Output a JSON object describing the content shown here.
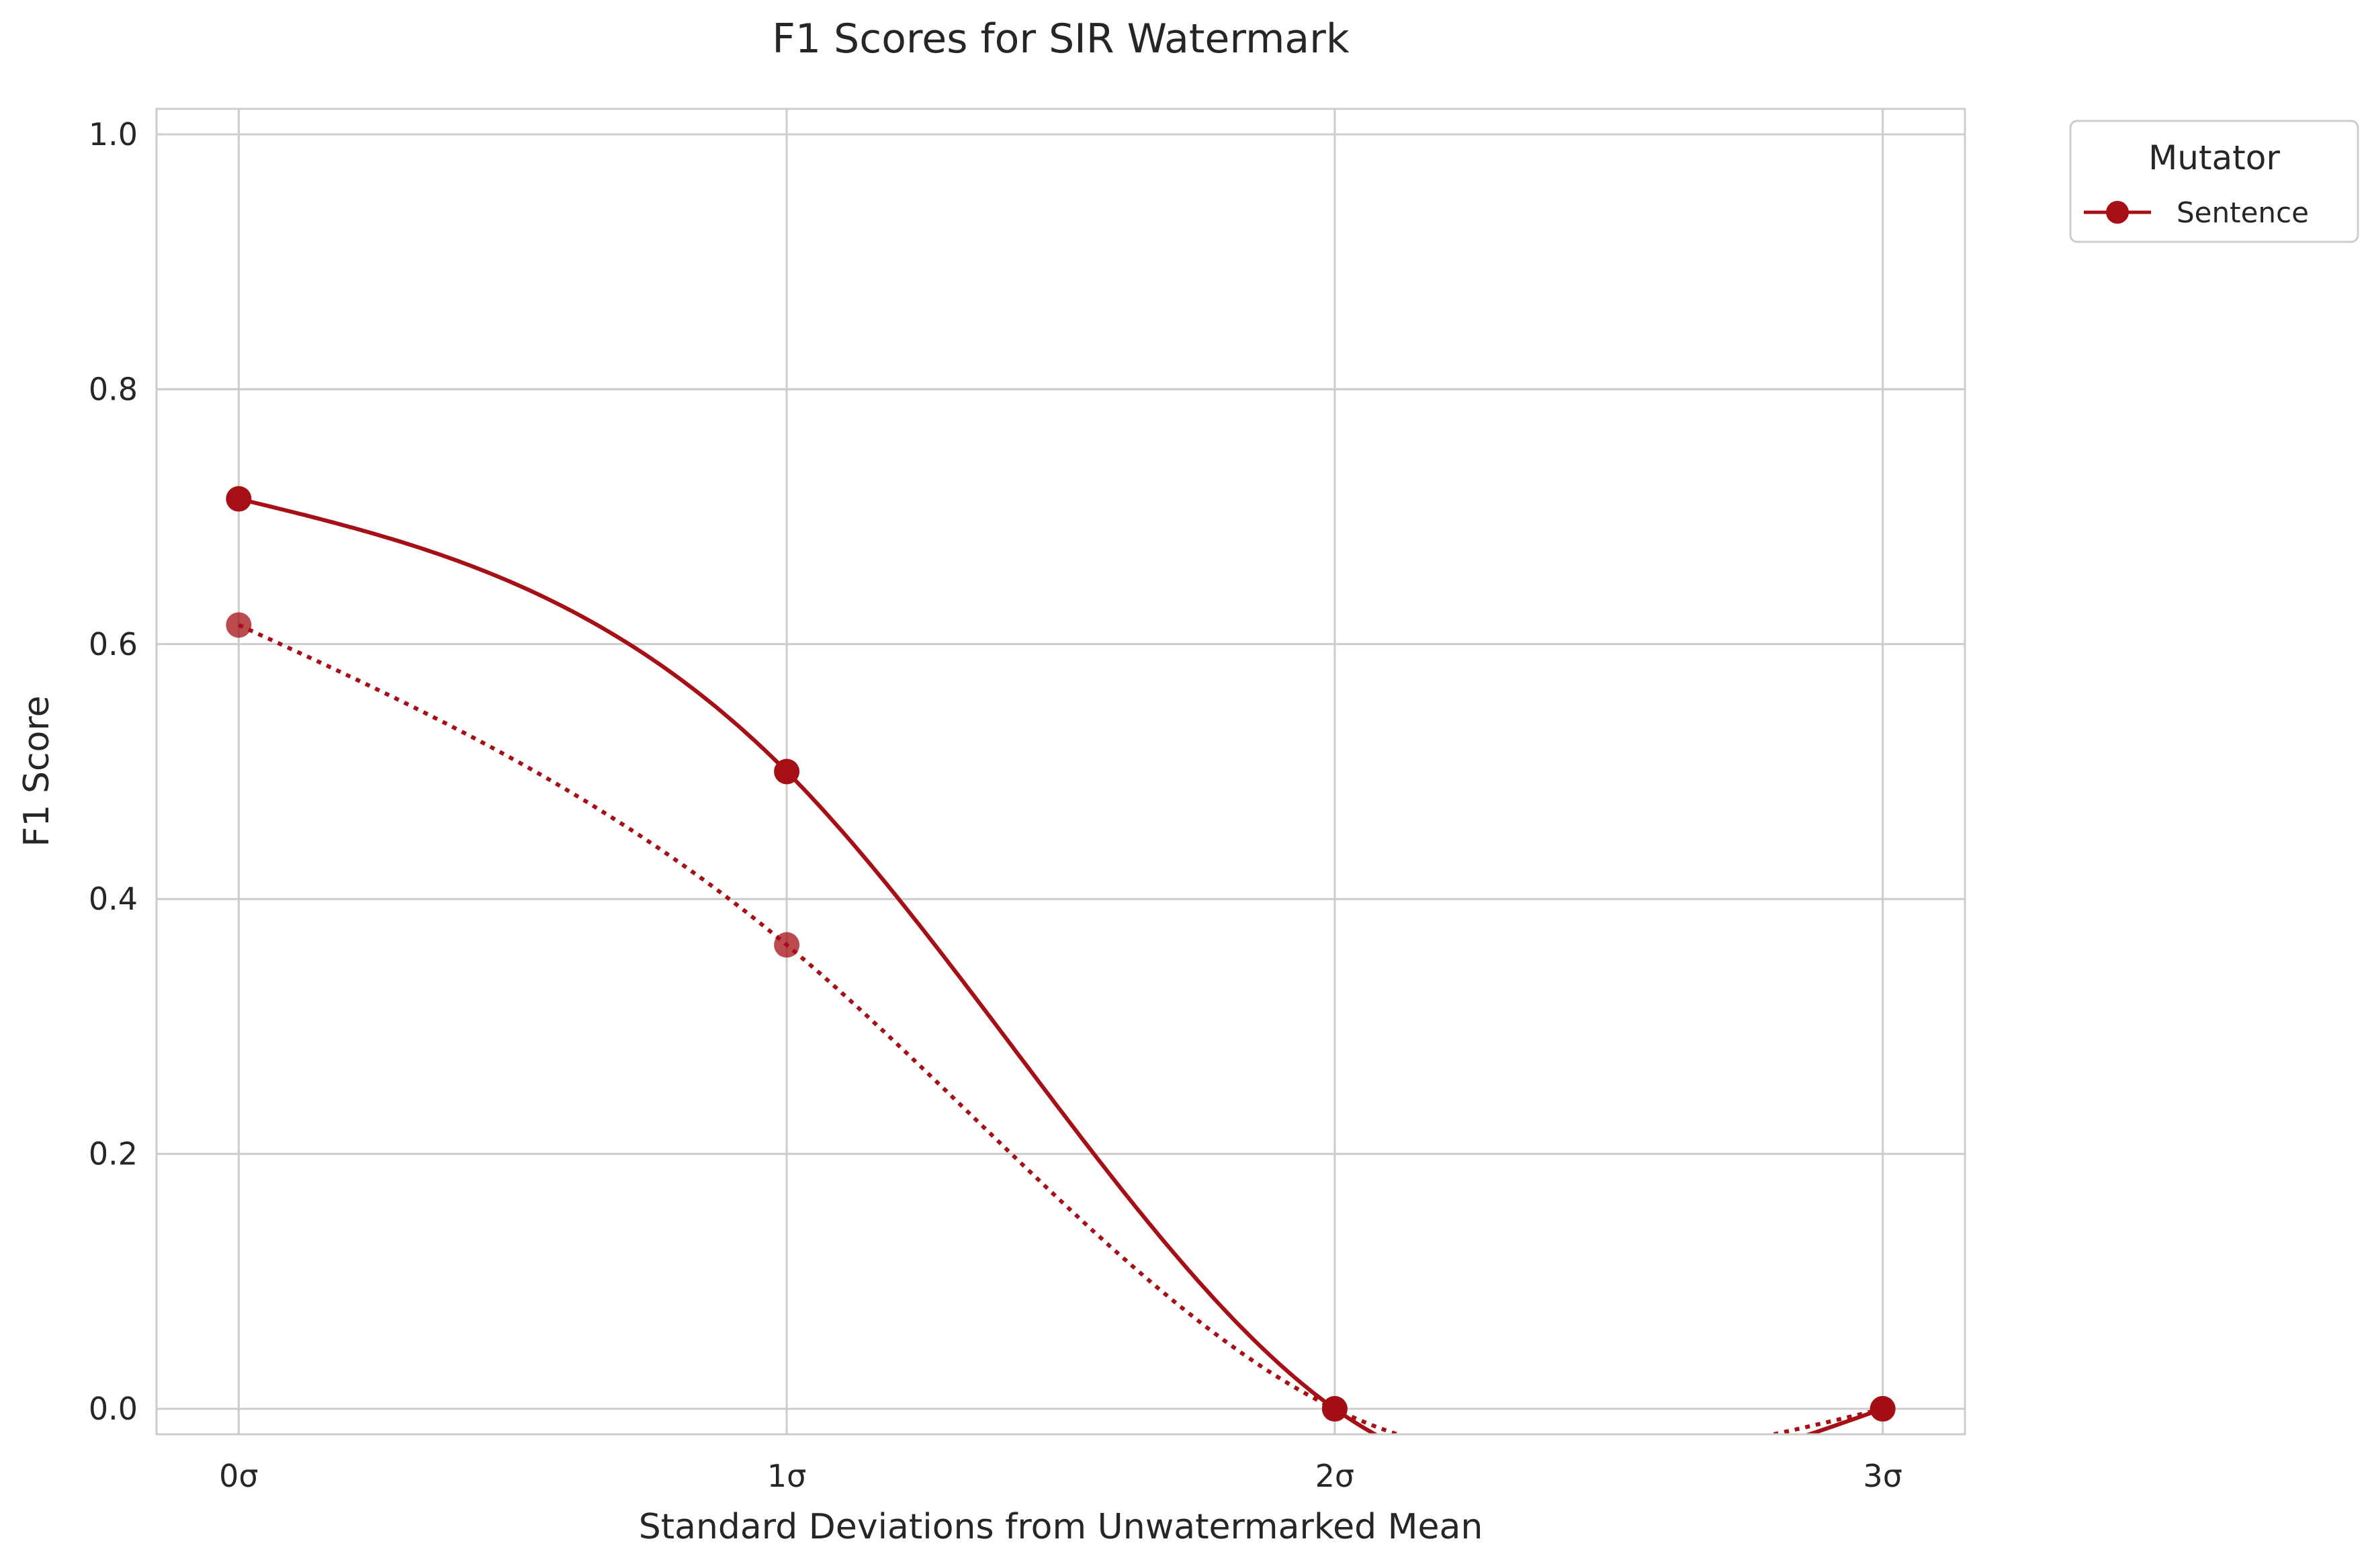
{
  "chart_data": {
    "type": "line",
    "title": "F1 Scores for SIR Watermark",
    "xlabel": "Standard Deviations from Unwatermarked Mean",
    "ylabel": "F1 Score",
    "categories": [
      "0σ",
      "1σ",
      "2σ",
      "3σ"
    ],
    "x": [
      0,
      1,
      2,
      3
    ],
    "xlim": [
      -0.15,
      3.15
    ],
    "ylim": [
      -0.02,
      1.02
    ],
    "y_ticks": [
      0.0,
      0.2,
      0.4,
      0.6,
      0.8,
      1.0
    ],
    "y_tick_labels": [
      "0.0",
      "0.2",
      "0.4",
      "0.6",
      "0.8",
      "1.0"
    ],
    "grid": true,
    "legend": {
      "title": "Mutator",
      "position": "outside-top-right"
    },
    "series": [
      {
        "name": "Sentence",
        "style": "solid",
        "color": "#a50f15",
        "values": [
          0.714,
          0.5,
          0.0,
          0.0
        ]
      },
      {
        "style": "dotted",
        "color": "#a50f15",
        "values": [
          0.615,
          0.364,
          0.0,
          0.0
        ]
      }
    ]
  }
}
